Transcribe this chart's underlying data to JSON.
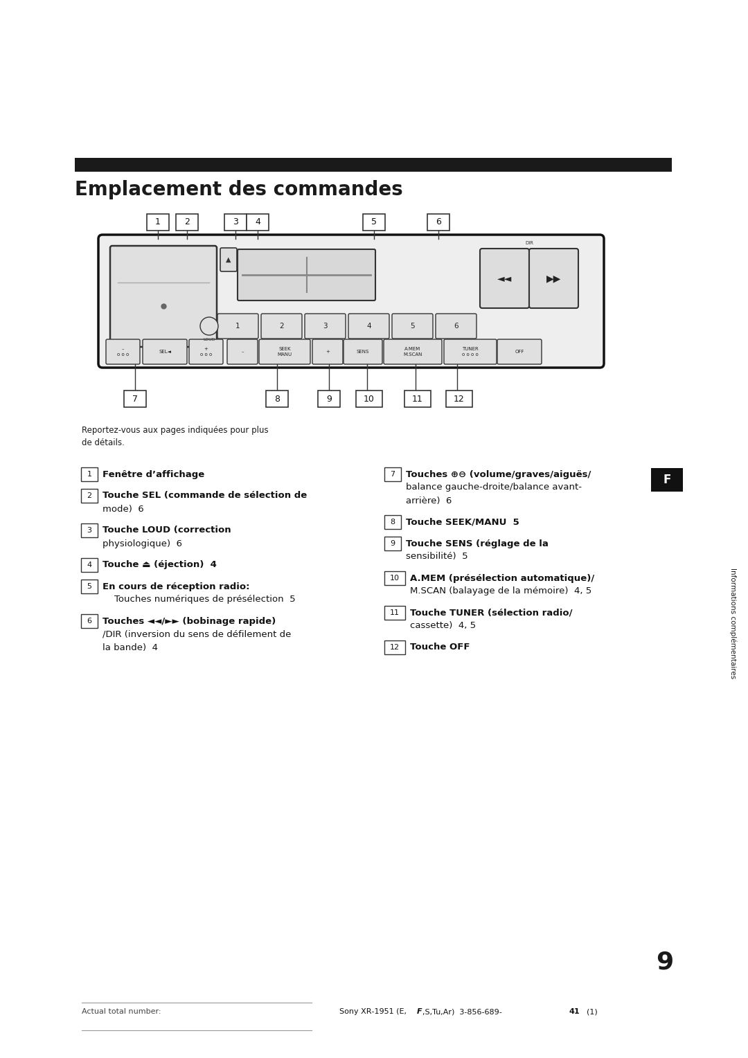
{
  "bg_color": "#ffffff",
  "page_title": "Emplacement des commandes",
  "title_bar_color": "#1a1a1a",
  "title_font_size": 20,
  "title_font_weight": "bold",
  "intro_text": "Reportez-vous aux pages indiquées pour plus\nde détails.",
  "intro_font_size": 8.5,
  "side_label": "Informations complémentaires",
  "side_label_font_size": 7.5,
  "f_box_text": "F",
  "page_number": "9",
  "footer_left": "Actual total number:",
  "items_left": [
    {
      "num": "1",
      "lines": [
        "Fenêtre d’affichage"
      ]
    },
    {
      "num": "2",
      "lines": [
        "Touche SEL (commande de sélection de",
        "mode)  6"
      ]
    },
    {
      "num": "3",
      "lines": [
        "Touche LOUD (correction",
        "physiologique)  6"
      ]
    },
    {
      "num": "4",
      "lines": [
        "Touche ⏏ (éjection)  4"
      ]
    },
    {
      "num": "5",
      "lines": [
        "En cours de réception radio:",
        "    Touches numériques de présélection  5"
      ]
    },
    {
      "num": "6",
      "lines": [
        "Touches ◄◄/►► (bobinage rapide)",
        "/DIR (inversion du sens de défilement de",
        "la bande)  4"
      ]
    }
  ],
  "items_right": [
    {
      "num": "7",
      "lines": [
        "Touches ⊕⊖ (volume/graves/aiguës/",
        "balance gauche-droite/balance avant-",
        "arrière)  6"
      ]
    },
    {
      "num": "8",
      "lines": [
        "Touche SEEK/MANU  5"
      ]
    },
    {
      "num": "9",
      "lines": [
        "Touche SENS (réglage de la",
        "sensibilité)  5"
      ]
    },
    {
      "num": "10",
      "lines": [
        "A.MEM (présélection automatique)/",
        "M.SCAN (balayage de la mémoire)  4, 5"
      ]
    },
    {
      "num": "11",
      "lines": [
        "Touche TUNER (sélection radio/",
        "cassette)  4, 5"
      ]
    },
    {
      "num": "12",
      "lines": [
        "Touche OFF"
      ]
    }
  ]
}
